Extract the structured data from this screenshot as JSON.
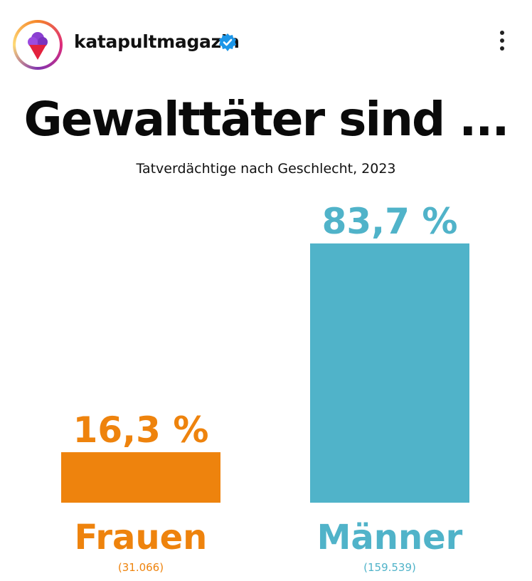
{
  "post": {
    "username": "katapultmagazin",
    "verified_icon": "verified-badge-icon",
    "more_icon": "more-vertical-icon",
    "avatar_icon": "ice-cream-logo-icon"
  },
  "colors": {
    "frauen": "#ee830d",
    "maenner": "#50b3c9",
    "title": "#0a0a0a"
  },
  "chart_data": {
    "type": "bar",
    "title": "Gewalttäter sind ...",
    "subtitle": "Tatverdächtige nach Geschlecht, 2023",
    "categories": [
      "Frauen",
      "Männer"
    ],
    "values": [
      16.3,
      83.7
    ],
    "value_labels": [
      "16,3 %",
      "83,7 %"
    ],
    "counts": [
      "(31.066)",
      "(159.539)"
    ],
    "unit": "%",
    "ylim": [
      0,
      100
    ],
    "grid": false,
    "legend": "none"
  }
}
